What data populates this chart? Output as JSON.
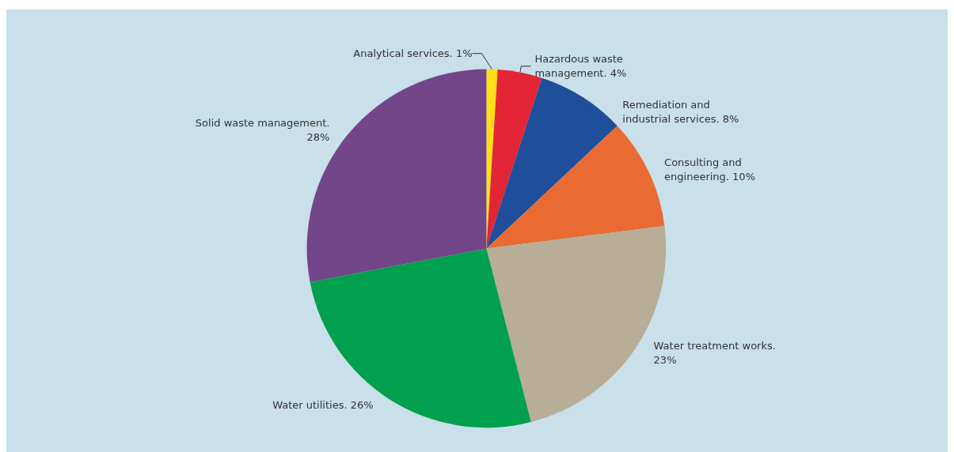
{
  "chart_data": {
    "type": "pie",
    "categories": [
      "Analytical services.",
      "Hazardous waste management.",
      "Remediation and industrial services.",
      "Consulting and engineering.",
      "Water treatment works.",
      "Water utilities.",
      "Solid waste management."
    ],
    "value_labels": [
      "1%",
      "4%",
      "8%",
      "10%",
      "23%",
      "26%",
      "28%"
    ],
    "values": [
      1,
      4,
      8,
      10,
      23,
      26,
      28
    ],
    "colors": [
      "#ffde17",
      "#e42535",
      "#1f4e9b",
      "#ea6a33",
      "#b8ad96",
      "#00a04f",
      "#724689"
    ],
    "legend": false
  }
}
